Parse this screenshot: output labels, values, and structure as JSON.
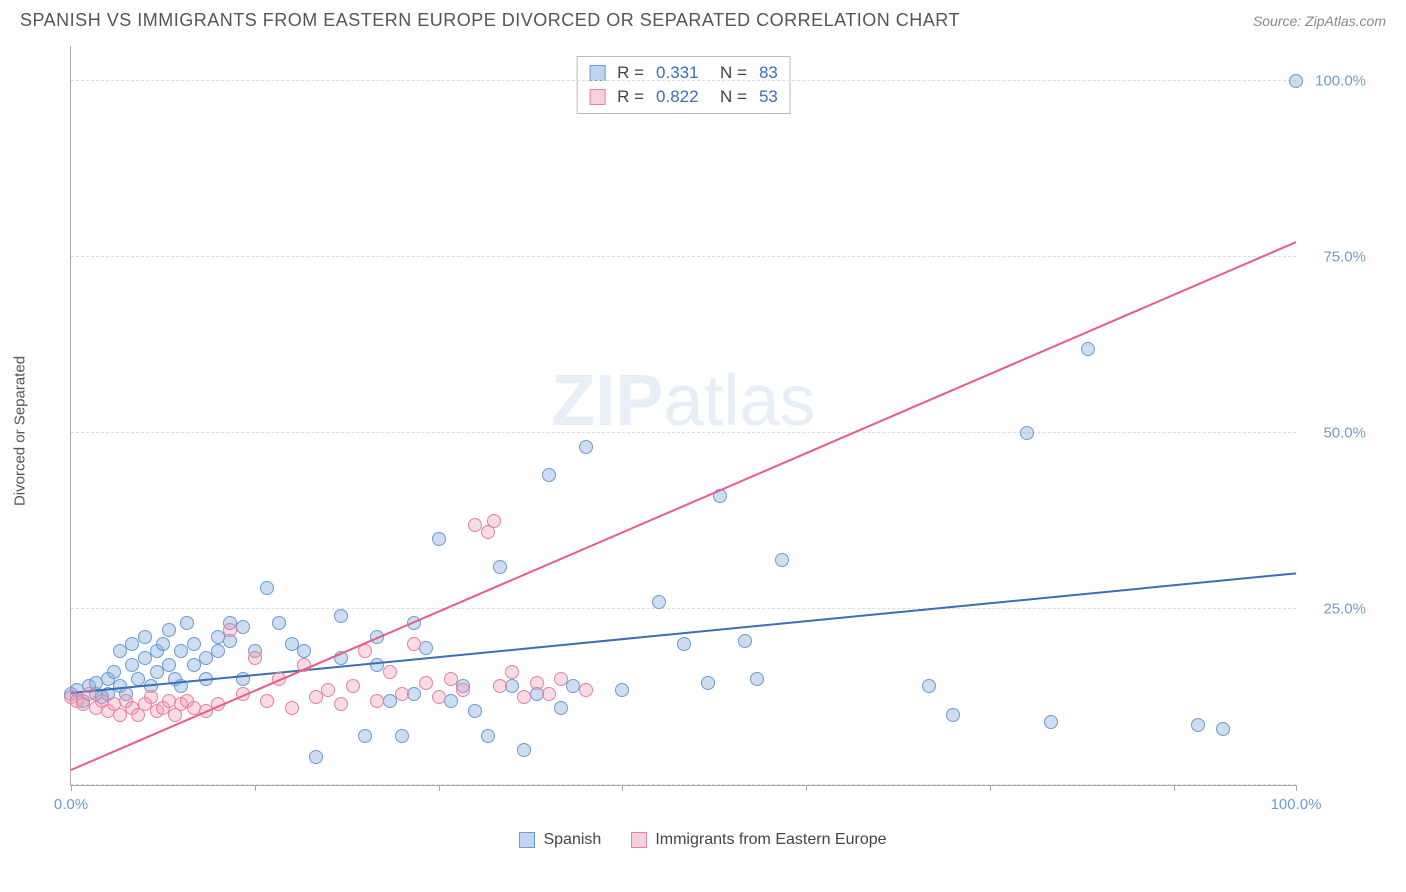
{
  "title": "SPANISH VS IMMIGRANTS FROM EASTERN EUROPE DIVORCED OR SEPARATED CORRELATION CHART",
  "source_label": "Source: ZipAtlas.com",
  "y_axis_label": "Divorced or Separated",
  "watermark": {
    "bold": "ZIP",
    "light": "atlas"
  },
  "chart": {
    "type": "scatter",
    "xlim": [
      0,
      100
    ],
    "ylim": [
      0,
      105
    ],
    "x_ticks": [
      0,
      15,
      30,
      45,
      60,
      75,
      90,
      100
    ],
    "x_tick_labels": {
      "0": "0.0%",
      "100": "100.0%"
    },
    "y_gridlines": [
      0,
      25,
      50,
      75,
      100
    ],
    "y_tick_labels": {
      "25": "25.0%",
      "50": "50.0%",
      "75": "75.0%",
      "100": "100.0%"
    },
    "background_color": "#ffffff",
    "grid_color": "#dddddd",
    "axis_color": "#aaaaaa",
    "tick_label_color": "#6b9bd1",
    "point_radius": 7,
    "series": [
      {
        "name": "Spanish",
        "color_fill": "rgba(130,170,220,0.4)",
        "color_stroke": "#6b9bd1",
        "trend_color": "#3b6fb5",
        "R": "0.331",
        "N": "83",
        "trend": {
          "x1": 0,
          "y1": 13,
          "x2": 100,
          "y2": 30
        },
        "points": [
          [
            0,
            13
          ],
          [
            0.5,
            13.5
          ],
          [
            1,
            12
          ],
          [
            1.5,
            14
          ],
          [
            2,
            13
          ],
          [
            2,
            14.5
          ],
          [
            2.5,
            12.5
          ],
          [
            3,
            15
          ],
          [
            3,
            13
          ],
          [
            3.5,
            16
          ],
          [
            4,
            14
          ],
          [
            4,
            19
          ],
          [
            4.5,
            13
          ],
          [
            5,
            17
          ],
          [
            5,
            20
          ],
          [
            5.5,
            15
          ],
          [
            6,
            18
          ],
          [
            6,
            21
          ],
          [
            6.5,
            14
          ],
          [
            7,
            19
          ],
          [
            7,
            16
          ],
          [
            7.5,
            20
          ],
          [
            8,
            17
          ],
          [
            8,
            22
          ],
          [
            8.5,
            15
          ],
          [
            9,
            19
          ],
          [
            9,
            14
          ],
          [
            9.5,
            23
          ],
          [
            10,
            17
          ],
          [
            10,
            20
          ],
          [
            11,
            18
          ],
          [
            11,
            15
          ],
          [
            12,
            21
          ],
          [
            12,
            19
          ],
          [
            13,
            23
          ],
          [
            13,
            20.5
          ],
          [
            14,
            15
          ],
          [
            14,
            22.5
          ],
          [
            15,
            19
          ],
          [
            16,
            28
          ],
          [
            17,
            23
          ],
          [
            18,
            20
          ],
          [
            19,
            19
          ],
          [
            20,
            4
          ],
          [
            22,
            24
          ],
          [
            22,
            18
          ],
          [
            24,
            7
          ],
          [
            25,
            17
          ],
          [
            25,
            21
          ],
          [
            26,
            12
          ],
          [
            27,
            7
          ],
          [
            28,
            23
          ],
          [
            28,
            13
          ],
          [
            29,
            19.5
          ],
          [
            30,
            35
          ],
          [
            31,
            12
          ],
          [
            32,
            14
          ],
          [
            33,
            10.5
          ],
          [
            34,
            7
          ],
          [
            35,
            31
          ],
          [
            36,
            14
          ],
          [
            37,
            5
          ],
          [
            38,
            13
          ],
          [
            39,
            44
          ],
          [
            40,
            11
          ],
          [
            41,
            14
          ],
          [
            42,
            48
          ],
          [
            45,
            13.5
          ],
          [
            48,
            26
          ],
          [
            50,
            20
          ],
          [
            52,
            14.5
          ],
          [
            53,
            41
          ],
          [
            55,
            20.5
          ],
          [
            56,
            15
          ],
          [
            58,
            32
          ],
          [
            70,
            14
          ],
          [
            72,
            10
          ],
          [
            78,
            50
          ],
          [
            80,
            9
          ],
          [
            83,
            62
          ],
          [
            92,
            8.5
          ],
          [
            94,
            8
          ],
          [
            100,
            100
          ]
        ]
      },
      {
        "name": "Immigrants from Eastern Europe",
        "color_fill": "rgba(240,150,180,0.35)",
        "color_stroke": "#e8809f",
        "trend_color": "#e85a8a",
        "R": "0.822",
        "N": "53",
        "trend": {
          "x1": 0,
          "y1": 2,
          "x2": 100,
          "y2": 77
        },
        "points": [
          [
            0,
            12.5
          ],
          [
            0.5,
            12
          ],
          [
            1,
            11.5
          ],
          [
            1.5,
            13
          ],
          [
            2,
            11
          ],
          [
            2.5,
            12
          ],
          [
            3,
            10.5
          ],
          [
            3.5,
            11.5
          ],
          [
            4,
            10
          ],
          [
            4.5,
            12
          ],
          [
            5,
            11
          ],
          [
            5.5,
            10
          ],
          [
            6,
            11.5
          ],
          [
            6.5,
            12.5
          ],
          [
            7,
            10.5
          ],
          [
            7.5,
            11
          ],
          [
            8,
            12
          ],
          [
            8.5,
            10
          ],
          [
            9,
            11.5
          ],
          [
            9.5,
            12
          ],
          [
            10,
            11
          ],
          [
            11,
            10.5
          ],
          [
            12,
            11.5
          ],
          [
            13,
            22
          ],
          [
            14,
            13
          ],
          [
            15,
            18
          ],
          [
            16,
            12
          ],
          [
            17,
            15
          ],
          [
            18,
            11
          ],
          [
            19,
            17
          ],
          [
            20,
            12.5
          ],
          [
            21,
            13.5
          ],
          [
            22,
            11.5
          ],
          [
            23,
            14
          ],
          [
            24,
            19
          ],
          [
            25,
            12
          ],
          [
            26,
            16
          ],
          [
            27,
            13
          ],
          [
            28,
            20
          ],
          [
            29,
            14.5
          ],
          [
            30,
            12.5
          ],
          [
            31,
            15
          ],
          [
            32,
            13.5
          ],
          [
            33,
            37
          ],
          [
            34,
            36
          ],
          [
            34.5,
            37.5
          ],
          [
            35,
            14
          ],
          [
            36,
            16
          ],
          [
            37,
            12.5
          ],
          [
            38,
            14.5
          ],
          [
            39,
            13
          ],
          [
            40,
            15
          ],
          [
            42,
            13.5
          ]
        ]
      }
    ]
  },
  "stats_legend": {
    "rows": [
      {
        "swatch": "blue",
        "R_label": "R =",
        "R": "0.331",
        "N_label": "N =",
        "N": "83"
      },
      {
        "swatch": "pink",
        "R_label": "R =",
        "R": "0.822",
        "N_label": "N =",
        "N": "53"
      }
    ]
  },
  "bottom_legend": [
    {
      "swatch": "blue",
      "label": "Spanish"
    },
    {
      "swatch": "pink",
      "label": "Immigrants from Eastern Europe"
    }
  ]
}
